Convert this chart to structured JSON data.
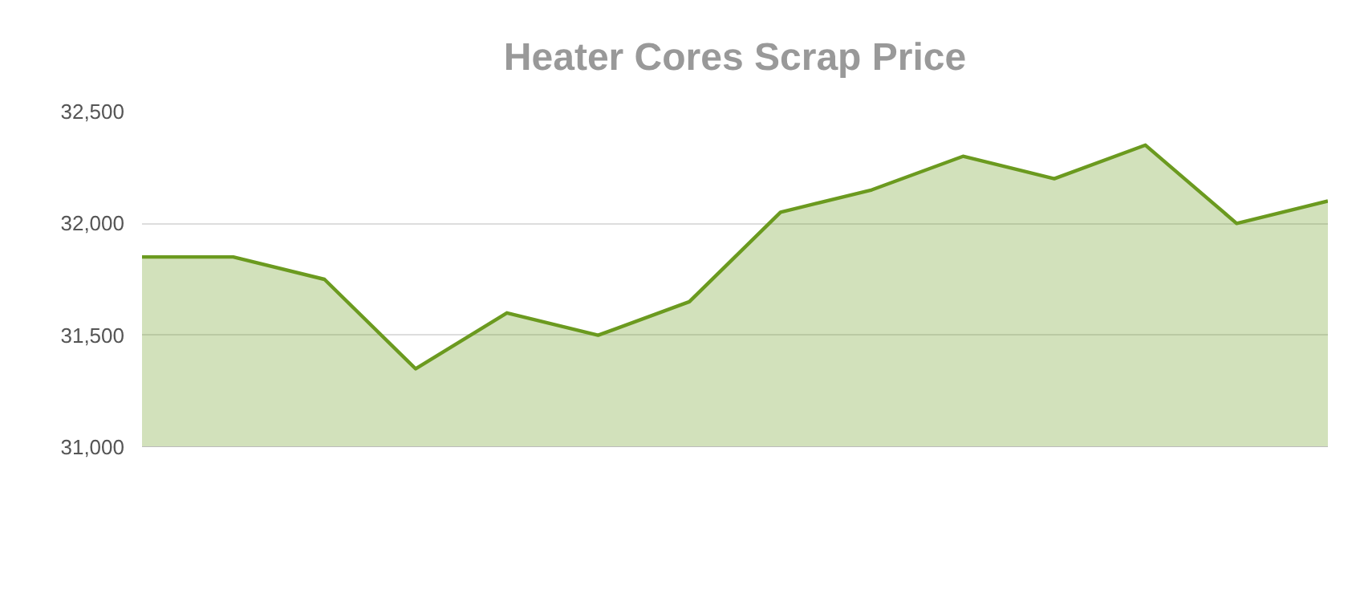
{
  "chart_data": {
    "type": "area",
    "title": "Heater Cores Scrap Price",
    "categories": [
      null,
      null,
      null,
      null,
      null,
      null,
      null,
      null,
      null,
      null,
      null,
      null,
      null,
      null
    ],
    "series": [
      {
        "color": "#6b9a1f",
        "values": [
          31850,
          31850,
          31750,
          31350,
          31600,
          31500,
          31650,
          32050,
          32150,
          32300,
          32200,
          32350,
          32000,
          32100
        ]
      }
    ],
    "ylim": [
      31000,
      32500
    ],
    "yticks": [
      {
        "value": 31000,
        "label": "31,000"
      },
      {
        "value": 31500,
        "label": "31,500"
      },
      {
        "value": 32000,
        "label": "32,000"
      },
      {
        "value": 32500,
        "label": "32,500"
      }
    ],
    "grid": "y",
    "marker": "none",
    "line_style": "solid"
  }
}
